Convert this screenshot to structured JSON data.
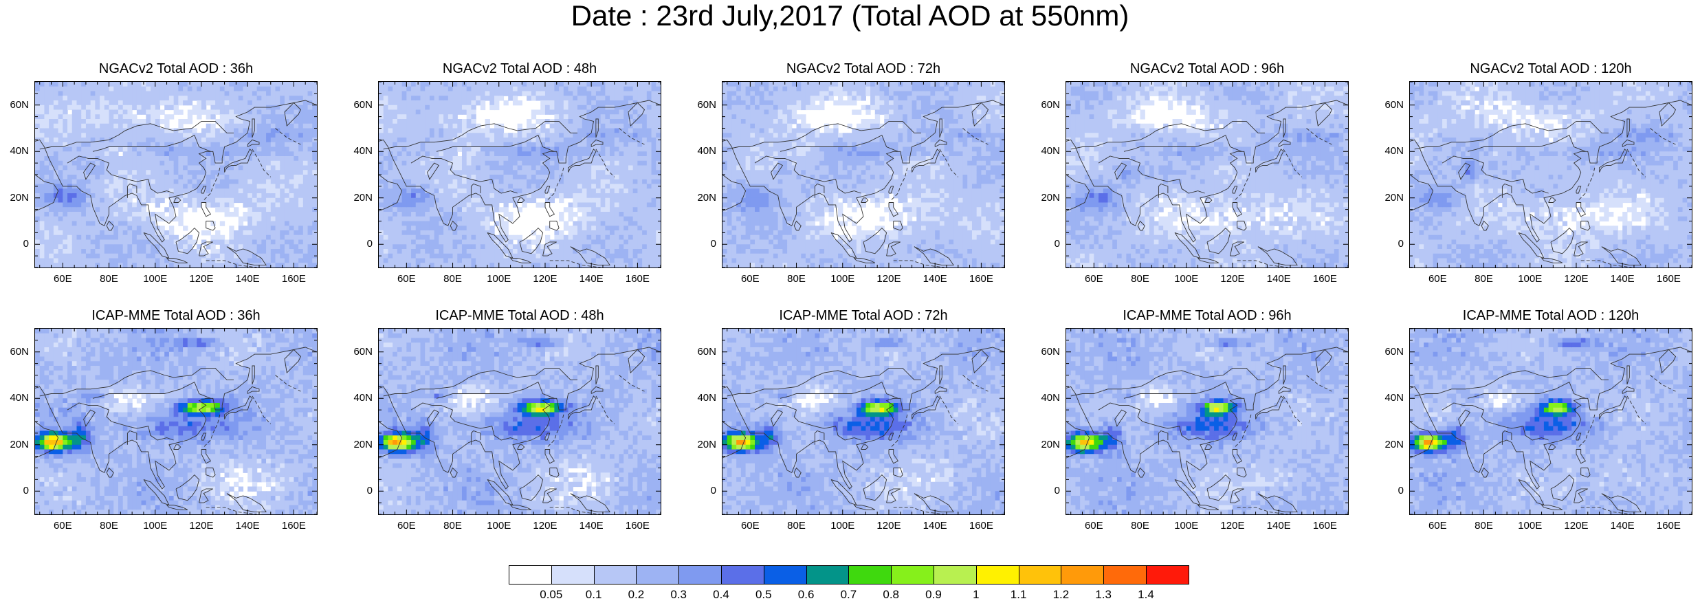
{
  "title": "Date : 23rd July,2017 (Total AOD at 550nm)",
  "map_extent": {
    "lon": [
      48,
      170
    ],
    "lat": [
      -10,
      70
    ]
  },
  "lat_labels": [
    "60N",
    "40N",
    "20N",
    "0"
  ],
  "lat_values": [
    60,
    40,
    20,
    0
  ],
  "lon_labels": [
    "60E",
    "80E",
    "100E",
    "120E",
    "140E",
    "160E"
  ],
  "lon_values": [
    60,
    80,
    100,
    120,
    140,
    160
  ],
  "panels": [
    {
      "title": "NGACv2 Total AOD : 36h",
      "model": "NGACv2",
      "lead": "36h"
    },
    {
      "title": "NGACv2 Total AOD : 48h",
      "model": "NGACv2",
      "lead": "48h"
    },
    {
      "title": "NGACv2 Total AOD : 72h",
      "model": "NGACv2",
      "lead": "72h"
    },
    {
      "title": "NGACv2 Total AOD : 96h",
      "model": "NGACv2",
      "lead": "96h"
    },
    {
      "title": "NGACv2 Total AOD : 120h",
      "model": "NGACv2",
      "lead": "120h"
    },
    {
      "title": "ICAP-MME Total AOD : 36h",
      "model": "ICAP-MME",
      "lead": "36h"
    },
    {
      "title": "ICAP-MME Total AOD : 48h",
      "model": "ICAP-MME",
      "lead": "48h"
    },
    {
      "title": "ICAP-MME Total AOD : 72h",
      "model": "ICAP-MME",
      "lead": "72h"
    },
    {
      "title": "ICAP-MME Total AOD : 96h",
      "model": "ICAP-MME",
      "lead": "96h"
    },
    {
      "title": "ICAP-MME Total AOD : 120h",
      "model": "ICAP-MME",
      "lead": "120h"
    }
  ],
  "colorbar": {
    "labels": [
      "0.05",
      "0.1",
      "0.2",
      "0.3",
      "0.4",
      "0.5",
      "0.6",
      "0.7",
      "0.8",
      "0.9",
      "1",
      "1.1",
      "1.2",
      "1.3",
      "1.4"
    ],
    "colors": [
      "#ffffff",
      "#d6e0fb",
      "#b7c7f6",
      "#9db3f3",
      "#7f9af0",
      "#5b6fe8",
      "#0a5fe6",
      "#039489",
      "#3fd90e",
      "#86f01b",
      "#b8f050",
      "#fff100",
      "#ffc20a",
      "#ff9a0a",
      "#ff6a0a",
      "#ff1a0a"
    ]
  }
}
